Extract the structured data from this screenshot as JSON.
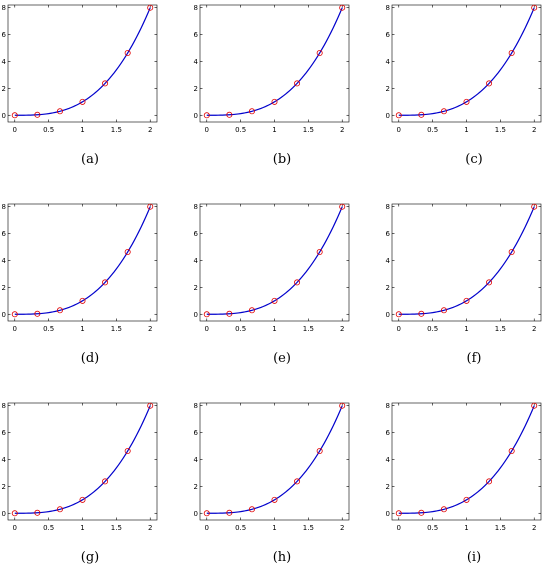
{
  "captions": [
    "(a)",
    "(b)",
    "(c)",
    "(d)",
    "(e)",
    "(f)",
    "(g)",
    "(h)",
    "(i)"
  ],
  "colors": {
    "curve": "#0000cc",
    "markers": "#e00000",
    "axes": "#000000"
  },
  "chart_data": [
    {
      "type": "line",
      "panel": "(a)",
      "xlim": [
        -0.1,
        2.1
      ],
      "ylim": [
        -0.5,
        8.2
      ],
      "grid": false,
      "title": "",
      "xlabel": "",
      "ylabel": "",
      "x_ticks": [
        0,
        0.5,
        1,
        1.5,
        2
      ],
      "y_ticks": [
        0,
        2,
        4,
        6,
        8
      ],
      "series": [
        {
          "values_fn": "x^3",
          "x": [
            0,
            0.333,
            0.667,
            1,
            1.333,
            1.667,
            2
          ],
          "values": [
            0,
            0.037,
            0.296,
            1,
            2.37,
            4.63,
            8
          ],
          "style": "line"
        },
        {
          "x": [
            0,
            0.333,
            0.667,
            1,
            1.333,
            1.667,
            2
          ],
          "values": [
            0,
            0.037,
            0.296,
            1,
            2.37,
            4.63,
            8
          ],
          "style": "markers"
        }
      ]
    },
    {
      "type": "line",
      "panel": "(b)",
      "xlim": [
        -0.1,
        2.1
      ],
      "ylim": [
        -0.5,
        8.2
      ],
      "grid": false,
      "title": "",
      "xlabel": "",
      "ylabel": "",
      "x_ticks": [
        0,
        0.5,
        1,
        1.5,
        2
      ],
      "y_ticks": [
        0,
        2,
        4,
        6,
        8
      ],
      "series": [
        {
          "x": [
            0,
            0.333,
            0.667,
            1,
            1.333,
            1.667,
            2
          ],
          "values": [
            0,
            0.037,
            0.296,
            1,
            2.37,
            4.63,
            8
          ],
          "style": "line"
        },
        {
          "x": [
            0,
            0.333,
            0.667,
            1,
            1.333,
            1.667,
            2
          ],
          "values": [
            0,
            0.037,
            0.296,
            1,
            2.37,
            4.63,
            8
          ],
          "style": "markers"
        }
      ]
    },
    {
      "type": "line",
      "panel": "(c)",
      "xlim": [
        -0.1,
        2.1
      ],
      "ylim": [
        -0.5,
        8.2
      ],
      "grid": false,
      "title": "",
      "xlabel": "",
      "ylabel": "",
      "x_ticks": [
        0,
        0.5,
        1,
        1.5,
        2
      ],
      "y_ticks": [
        0,
        2,
        4,
        6,
        8
      ],
      "series": [
        {
          "x": [
            0,
            0.333,
            0.667,
            1,
            1.333,
            1.667,
            2
          ],
          "values": [
            0,
            0.037,
            0.296,
            1,
            2.37,
            4.63,
            8
          ],
          "style": "line"
        },
        {
          "x": [
            0,
            0.333,
            0.667,
            1,
            1.333,
            1.667,
            2
          ],
          "values": [
            0,
            0.037,
            0.296,
            1,
            2.37,
            4.63,
            8
          ],
          "style": "markers"
        }
      ]
    },
    {
      "type": "line",
      "panel": "(d)",
      "xlim": [
        -0.1,
        2.1
      ],
      "ylim": [
        -0.5,
        8.2
      ],
      "grid": false,
      "title": "",
      "xlabel": "",
      "ylabel": "",
      "x_ticks": [
        0,
        0.5,
        1,
        1.5,
        2
      ],
      "y_ticks": [
        0,
        2,
        4,
        6,
        8
      ],
      "series": [
        {
          "x": [
            0,
            0.333,
            0.667,
            1,
            1.333,
            1.667,
            2
          ],
          "values": [
            0,
            0.037,
            0.296,
            1,
            2.37,
            4.63,
            8
          ],
          "style": "line"
        },
        {
          "x": [
            0,
            0.333,
            0.667,
            1,
            1.333,
            1.667,
            2
          ],
          "values": [
            0,
            0.037,
            0.296,
            1,
            2.37,
            4.63,
            8
          ],
          "style": "markers"
        }
      ]
    },
    {
      "type": "line",
      "panel": "(e)",
      "xlim": [
        -0.1,
        2.1
      ],
      "ylim": [
        -0.5,
        8.2
      ],
      "grid": false,
      "title": "",
      "xlabel": "",
      "ylabel": "",
      "x_ticks": [
        0,
        0.5,
        1,
        1.5,
        2
      ],
      "y_ticks": [
        0,
        2,
        4,
        6,
        8
      ],
      "series": [
        {
          "x": [
            0,
            0.333,
            0.667,
            1,
            1.333,
            1.667,
            2
          ],
          "values": [
            0,
            0.037,
            0.296,
            1,
            2.37,
            4.63,
            8
          ],
          "style": "line"
        },
        {
          "x": [
            0,
            0.333,
            0.667,
            1,
            1.333,
            1.667,
            2
          ],
          "values": [
            0,
            0.037,
            0.296,
            1,
            2.37,
            4.63,
            8
          ],
          "style": "markers"
        }
      ]
    },
    {
      "type": "line",
      "panel": "(f)",
      "xlim": [
        -0.1,
        2.1
      ],
      "ylim": [
        -0.5,
        8.2
      ],
      "grid": false,
      "title": "",
      "xlabel": "",
      "ylabel": "",
      "x_ticks": [
        0,
        0.5,
        1,
        1.5,
        2
      ],
      "y_ticks": [
        0,
        2,
        4,
        6,
        8
      ],
      "series": [
        {
          "x": [
            0,
            0.333,
            0.667,
            1,
            1.333,
            1.667,
            2
          ],
          "values": [
            0,
            0.037,
            0.296,
            1,
            2.37,
            4.63,
            8
          ],
          "style": "line"
        },
        {
          "x": [
            0,
            0.333,
            0.667,
            1,
            1.333,
            1.667,
            2
          ],
          "values": [
            0,
            0.037,
            0.296,
            1,
            2.37,
            4.63,
            8
          ],
          "style": "markers"
        }
      ]
    },
    {
      "type": "line",
      "panel": "(g)",
      "xlim": [
        -0.1,
        2.1
      ],
      "ylim": [
        -0.5,
        8.2
      ],
      "grid": false,
      "title": "",
      "xlabel": "",
      "ylabel": "",
      "x_ticks": [
        0,
        0.5,
        1,
        1.5,
        2
      ],
      "y_ticks": [
        0,
        2,
        4,
        6,
        8
      ],
      "series": [
        {
          "x": [
            0,
            0.333,
            0.667,
            1,
            1.333,
            1.667,
            2
          ],
          "values": [
            0,
            0.037,
            0.296,
            1,
            2.37,
            4.63,
            8
          ],
          "style": "line"
        },
        {
          "x": [
            0,
            0.333,
            0.667,
            1,
            1.333,
            1.667,
            2
          ],
          "values": [
            0,
            0.037,
            0.296,
            1,
            2.37,
            4.63,
            8
          ],
          "style": "markers"
        }
      ]
    },
    {
      "type": "line",
      "panel": "(h)",
      "xlim": [
        -0.1,
        2.1
      ],
      "ylim": [
        -0.5,
        8.2
      ],
      "grid": false,
      "title": "",
      "xlabel": "",
      "ylabel": "",
      "x_ticks": [
        0,
        0.5,
        1,
        1.5,
        2
      ],
      "y_ticks": [
        0,
        2,
        4,
        6,
        8
      ],
      "series": [
        {
          "x": [
            0,
            0.333,
            0.667,
            1,
            1.333,
            1.667,
            2
          ],
          "values": [
            0,
            0.037,
            0.296,
            1,
            2.37,
            4.63,
            8
          ],
          "style": "line"
        },
        {
          "x": [
            0,
            0.333,
            0.667,
            1,
            1.333,
            1.667,
            2
          ],
          "values": [
            0,
            0.037,
            0.296,
            1,
            2.37,
            4.63,
            8
          ],
          "style": "markers"
        }
      ]
    },
    {
      "type": "line",
      "panel": "(i)",
      "xlim": [
        -0.1,
        2.1
      ],
      "ylim": [
        -0.5,
        8.2
      ],
      "grid": false,
      "title": "",
      "xlabel": "",
      "ylabel": "",
      "x_ticks": [
        0,
        0.5,
        1,
        1.5,
        2
      ],
      "y_ticks": [
        0,
        2,
        4,
        6,
        8
      ],
      "series": [
        {
          "x": [
            0,
            0.333,
            0.667,
            1,
            1.333,
            1.667,
            2
          ],
          "values": [
            0,
            0.037,
            0.296,
            1,
            2.37,
            4.63,
            8
          ],
          "style": "line"
        },
        {
          "x": [
            0,
            0.333,
            0.667,
            1,
            1.333,
            1.667,
            2
          ],
          "values": [
            0,
            0.037,
            0.296,
            1,
            2.37,
            4.63,
            8
          ],
          "style": "markers"
        }
      ]
    }
  ]
}
